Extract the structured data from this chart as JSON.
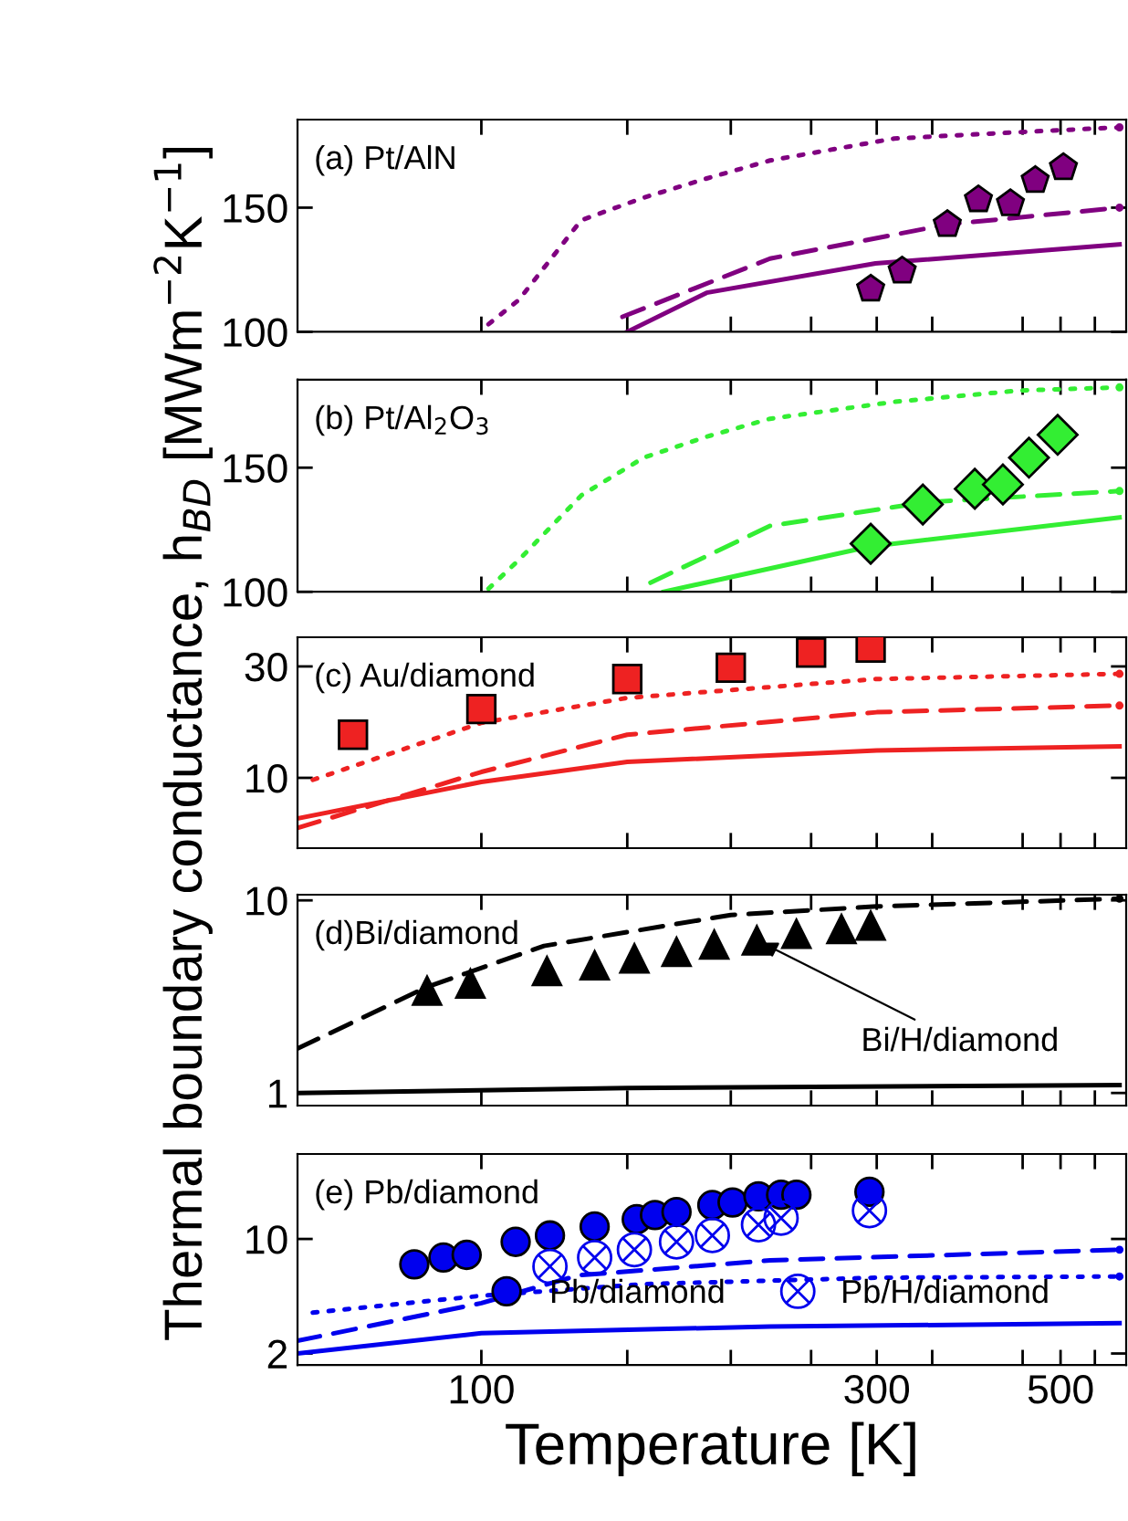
{
  "chart_data": [
    {
      "type": "line",
      "title": "(a) Pt/AlN",
      "log": "xy",
      "xlim": [
        60,
        600
      ],
      "ylim": [
        100,
        200
      ],
      "xticks": [
        {
          "value": 100,
          "label": null
        },
        {
          "value": 150,
          "label": null
        },
        {
          "value": 200,
          "label": null
        },
        {
          "value": 250,
          "label": null
        },
        {
          "value": 300,
          "label": null
        },
        {
          "value": 350,
          "label": null
        },
        {
          "value": 450,
          "label": null
        },
        {
          "value": 500,
          "label": null
        },
        {
          "value": 550,
          "label": null
        }
      ],
      "yticks": [
        100,
        150
      ],
      "tick_labels": "y",
      "grid": false,
      "legend": false,
      "series": [
        {
          "line_style": "solid",
          "color": "#800080",
          "x": [
            150,
            187,
            299,
            589
          ],
          "values": [
            100,
            113.6,
            125,
            133
          ]
        },
        {
          "line_style": "dashed",
          "color": "#800080",
          "x": [
            148,
            223,
            365,
            589
          ],
          "values": [
            105,
            127,
            142,
            150
          ]
        },
        {
          "line_style": "dotted",
          "color": "#800080",
          "x": [
            102,
            111,
            132,
            157,
            187,
            223,
            315,
            446,
            589
          ],
          "values": [
            102.5,
            111,
            144,
            155,
            165,
            175,
            188,
            192,
            195
          ]
        },
        {
          "type": "scatter",
          "color": "#800080",
          "x": [
            295,
            322,
            365,
            398,
            435,
            466,
            504
          ],
          "values": [
            115,
            122,
            142,
            154,
            152,
            164,
            171
          ]
        }
      ]
    },
    {
      "type": "line",
      "title": "(b) Pt/Al$_{2}$O$_{3}$",
      "log": "xy",
      "xlim": [
        60,
        600
      ],
      "ylim": [
        100,
        200
      ],
      "xticks": [
        {
          "value": 100,
          "label": null
        },
        {
          "value": 150,
          "label": null
        },
        {
          "value": 200,
          "label": null
        },
        {
          "value": 250,
          "label": null
        },
        {
          "value": 300,
          "label": null
        },
        {
          "value": 350,
          "label": null
        },
        {
          "value": 450,
          "label": null
        },
        {
          "value": 500,
          "label": null
        },
        {
          "value": 550,
          "label": null
        }
      ],
      "yticks": [
        100,
        150
      ],
      "tick_labels": "y",
      "grid": false,
      "legend": false,
      "series": [
        {
          "line_style": "solid",
          "color": "#33ee33",
          "x": [
            166,
            295,
            589
          ],
          "values": [
            100,
            116,
            127.5
          ]
        },
        {
          "line_style": "dashed",
          "color": "#33ee33",
          "x": [
            160,
            223,
            344,
            589
          ],
          "values": [
            103,
            124,
            134,
            139
          ]
        },
        {
          "line_style": "dotted",
          "color": "#33ee33",
          "x": [
            102,
            111,
            132,
            157,
            187,
            223,
            315,
            446,
            589
          ],
          "values": [
            101,
            111,
            137,
            155,
            166,
            176,
            186,
            193,
            195
          ]
        },
        {
          "type": "scatter",
          "marker": "diamond",
          "color": "#33ee33",
          "x": [
            295,
            341,
            394,
            426,
            458,
            496
          ],
          "values": [
            117,
            133,
            140,
            142,
            155,
            167
          ]
        }
      ]
    },
    {
      "type": "line",
      "title": "(c) Au/diamond",
      "ylabel": "Thermal boundary conductance, h$_{BD}$ [MWm$^{−2}$K$^{−1}$]",
      "log": "xy",
      "xlim": [
        60,
        600
      ],
      "ylim": [
        5,
        40
      ],
      "xticks": [
        {
          "value": 100,
          "label": null
        },
        {
          "value": 150,
          "label": null
        },
        {
          "value": 200,
          "label": null
        },
        {
          "value": 250,
          "label": null
        },
        {
          "value": 300,
          "label": null
        },
        {
          "value": 350,
          "label": null
        },
        {
          "value": 450,
          "label": null
        },
        {
          "value": 500,
          "label": null
        },
        {
          "value": 550,
          "label": null
        }
      ],
      "yticks": [
        10,
        30
      ],
      "tick_labels": "y",
      "grid": false,
      "legend": false,
      "series": [
        {
          "line_style": "solid",
          "color": "#ee2222",
          "x": [
            60,
            100,
            150,
            300,
            589
          ],
          "values": [
            6.7,
            9.6,
            11.7,
            13.1,
            13.65
          ]
        },
        {
          "line_style": "dashed",
          "color": "#ee2222",
          "x": [
            60,
            100,
            150,
            300,
            589
          ],
          "values": [
            6.1,
            10.6,
            15.3,
            19.1,
            20.4
          ]
        },
        {
          "line_style": "dotted",
          "color": "#ee2222",
          "x": [
            62.6,
            100,
            150,
            300,
            589
          ],
          "values": [
            9.8,
            17.2,
            22,
            26.5,
            27.9
          ]
        },
        {
          "type": "scatter",
          "marker": "square",
          "color": "#ee2222",
          "x": [
            70,
            100,
            150,
            200,
            250,
            295
          ],
          "values": [
            15.3,
            19.7,
            26.5,
            29.6,
            34.4,
            36.1
          ]
        }
      ]
    },
    {
      "type": "line",
      "title": "(d)Bi/diamond",
      "log": "xy",
      "xlim": [
        60,
        600
      ],
      "ylim": [
        0.86,
        10.7
      ],
      "xticks": [
        {
          "value": 100,
          "label": null
        },
        {
          "value": 150,
          "label": null
        },
        {
          "value": 200,
          "label": null
        },
        {
          "value": 250,
          "label": null
        },
        {
          "value": 300,
          "label": null
        },
        {
          "value": 350,
          "label": null
        },
        {
          "value": 450,
          "label": null
        },
        {
          "value": 500,
          "label": null
        },
        {
          "value": 550,
          "label": null
        }
      ],
      "yticks": [
        1,
        10
      ],
      "tick_labels": "y",
      "grid": false,
      "legend": false,
      "annotations": [
        {
          "text": "Bi/H/diamond",
          "x": 215,
          "y": 6.2
        }
      ],
      "series": [
        {
          "line_style": "solid",
          "color": "#000000",
          "x": [
            60,
            150,
            589
          ],
          "values": [
            1.0,
            1.06,
            1.1
          ]
        },
        {
          "line_style": "dashed",
          "color": "#000000",
          "x": [
            60,
            86,
            119,
            200,
            300,
            589
          ],
          "values": [
            1.7,
            3.55,
            5.8,
            8.4,
            9.3,
            10.2
          ]
        },
        {
          "type": "scatter",
          "marker": "triangle",
          "color": "#000000",
          "x": [
            86,
            97,
            120,
            137,
            153,
            172,
            191,
            215,
            240,
            272,
            295
          ],
          "values": [
            3.4,
            3.7,
            4.3,
            4.6,
            5.0,
            5.4,
            5.9,
            6.2,
            6.7,
            7.1,
            7.4
          ]
        }
      ]
    },
    {
      "type": "line",
      "title": "(e) Pb/diamond",
      "xlabel": "Temperature [K]",
      "log": "xy",
      "xlim": [
        60,
        600
      ],
      "ylim": [
        1.7,
        33
      ],
      "xticks": [
        100,
        {
          "value": 150,
          "label": null
        },
        {
          "value": 200,
          "label": null
        },
        {
          "value": 250,
          "label": null
        },
        300,
        {
          "value": 350,
          "label": null
        },
        {
          "value": 450,
          "label": null
        },
        500,
        {
          "value": 550,
          "label": null
        }
      ],
      "yticks": [
        2,
        10
      ],
      "grid": false,
      "legend": "bottom",
      "series": [
        {
          "line_style": "solid",
          "color": "#0000ee",
          "x": [
            60,
            100,
            223,
            589
          ],
          "values": [
            2.0,
            2.66,
            2.92,
            3.06
          ]
        },
        {
          "line_style": "dashed",
          "color": "#0000ee",
          "x": [
            60,
            100,
            131,
            223,
            589
          ],
          "values": [
            2.39,
            4.06,
            6.0,
            7.4,
            8.6
          ]
        },
        {
          "line_style": "dotted",
          "color": "#0000ee",
          "x": [
            62.6,
            100,
            157,
            299,
            589
          ],
          "values": [
            3.55,
            4.5,
            5.3,
            5.8,
            5.9
          ]
        },
        {
          "type": "scatter",
          "name": "Pb/diamond",
          "marker": "circle",
          "color": "#0000ee",
          "x": [
            83,
            90,
            96,
            110,
            121,
            137,
            154,
            162,
            172,
            190,
            201,
            216,
            230,
            240,
            294
          ],
          "values": [
            7.0,
            7.7,
            8.0,
            9.6,
            10.5,
            11.9,
            13.2,
            14.0,
            14.6,
            16.1,
            16.7,
            18.2,
            18.6,
            18.6,
            19.4
          ]
        },
        {
          "type": "scatter",
          "name": "Pb/H/diamond",
          "marker": "cross",
          "color": "#0000ee",
          "x": [
            121,
            137,
            153,
            172,
            190,
            216,
            230,
            294
          ],
          "values": [
            6.8,
            7.7,
            8.6,
            9.6,
            10.5,
            12.2,
            13.4,
            14.9
          ]
        }
      ]
    }
  ]
}
